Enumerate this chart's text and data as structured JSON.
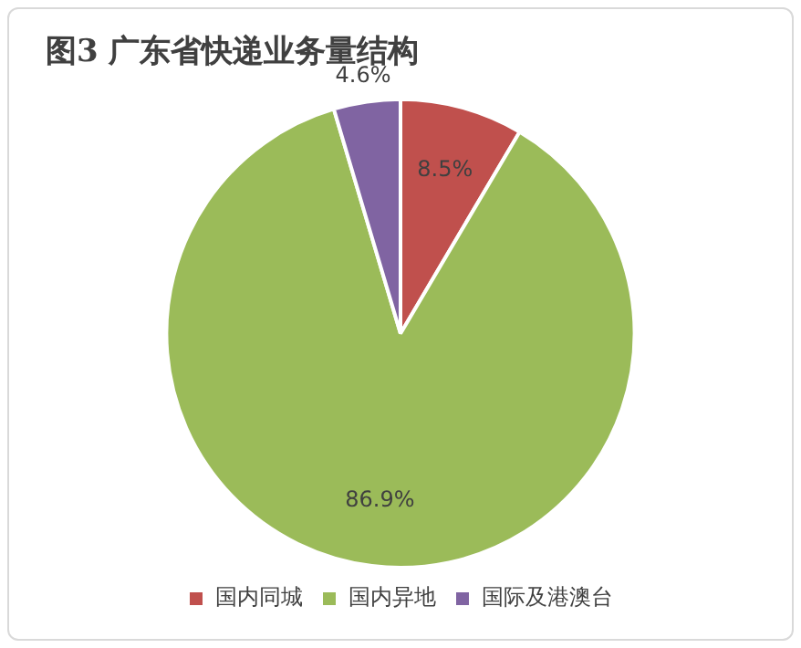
{
  "chart_data": {
    "type": "pie",
    "title": "图3 广东省快递业务量结构",
    "categories": [
      "国内同城",
      "国内异地",
      "国际及港澳台"
    ],
    "values": [
      8.5,
      86.9,
      4.6
    ],
    "colors": [
      "#c0504d",
      "#9bbb59",
      "#8064a2"
    ],
    "value_labels": [
      "8.5%",
      "86.9%",
      "4.6%"
    ],
    "legend": "bottom"
  }
}
